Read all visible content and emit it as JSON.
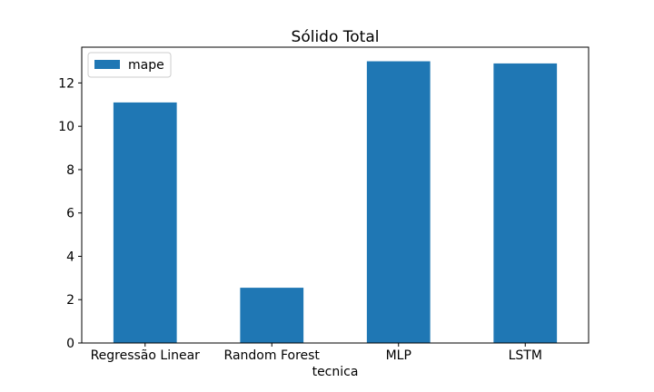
{
  "chart_data": {
    "type": "bar",
    "title": "Sólido Total",
    "xlabel": "tecnica",
    "ylabel": "",
    "categories": [
      "Regressão Linear",
      "Random Forest",
      "MLP",
      "LSTM"
    ],
    "series": [
      {
        "name": "mape",
        "values": [
          11.1,
          2.55,
          13.0,
          12.9
        ],
        "color": "#1f77b4"
      }
    ],
    "ylim": [
      0,
      13.65
    ],
    "yticks": [
      0,
      2,
      4,
      6,
      8,
      10,
      12
    ],
    "grid": false,
    "legend": {
      "position": "top-left",
      "labels": [
        "mape"
      ]
    }
  }
}
